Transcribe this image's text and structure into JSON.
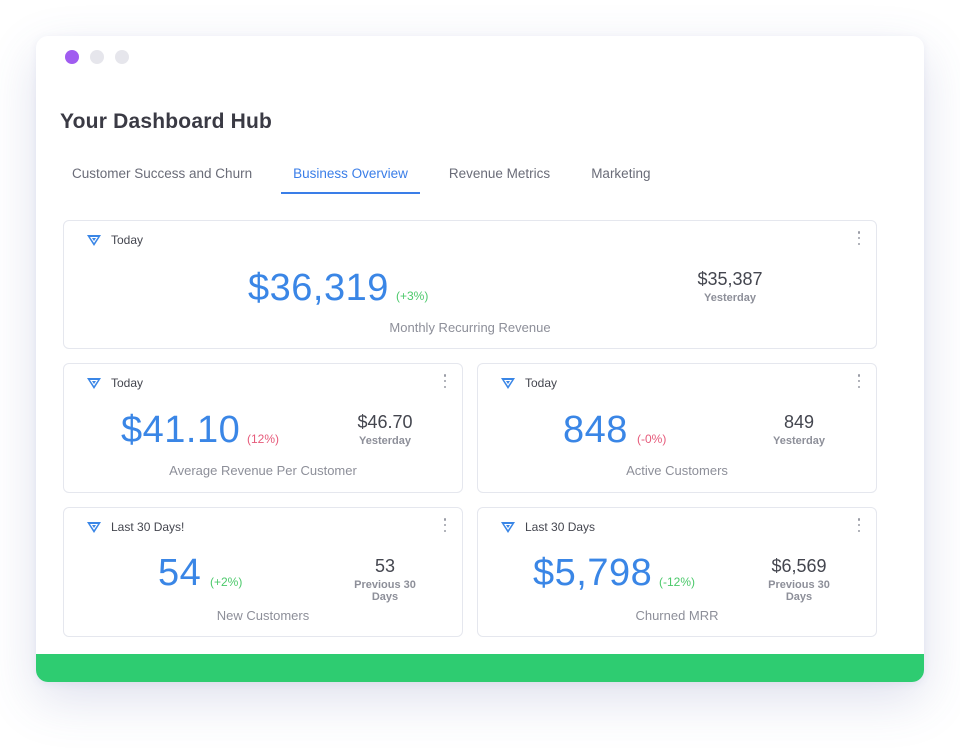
{
  "window": {
    "title": "Your Dashboard Hub"
  },
  "tabs": [
    {
      "label": "Customer Success and Churn"
    },
    {
      "label": "Business Overview"
    },
    {
      "label": "Revenue Metrics"
    },
    {
      "label": "Marketing"
    }
  ],
  "active_tab": "Business Overview",
  "cards": {
    "mrr": {
      "period": "Today",
      "value": "$36,319",
      "change": "(+3%)",
      "compare_value": "$35,387",
      "compare_label": "Yesterday",
      "name": "Monthly Recurring Revenue"
    },
    "arpc": {
      "period": "Today",
      "value": "$41.10",
      "change": "(12%)",
      "compare_value": "$46.70",
      "compare_label": "Yesterday",
      "name": "Average Revenue Per Customer"
    },
    "active": {
      "period": "Today",
      "value": "848",
      "change": "(-0%)",
      "compare_value": "849",
      "compare_label": "Yesterday",
      "name": "Active Customers"
    },
    "new": {
      "period": "Last 30 Days!",
      "value": "54",
      "change": "(+2%)",
      "compare_value": "53",
      "compare_label": "Previous 30 Days",
      "name": "New Customers"
    },
    "churn": {
      "period": "Last 30 Days",
      "value": "$5,798",
      "change": "(-12%)",
      "compare_value": "$6,569",
      "compare_label": "Previous 30 Days",
      "name": "Churned MRR"
    }
  },
  "colors": {
    "accent": "#3a7ee8",
    "positive": "#4cc96b",
    "negative": "#e65a7a",
    "footer_bar": "#2ecc71",
    "window_dot_active": "#a05cf0"
  },
  "icons": {
    "card_logo": "baremetrics-logo-icon",
    "card_menu": "more-vertical-icon"
  }
}
